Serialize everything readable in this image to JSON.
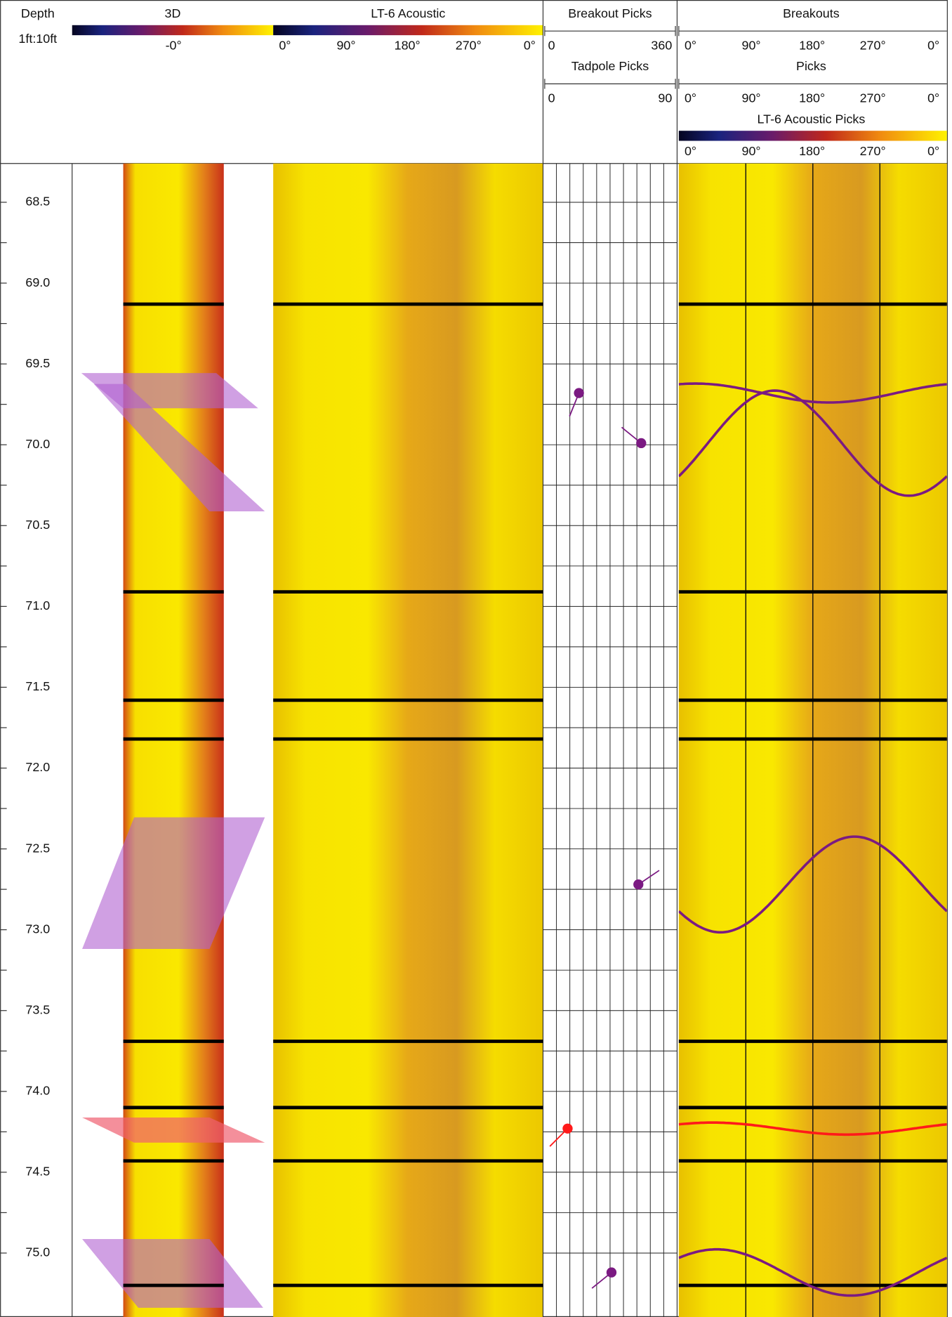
{
  "chart_data": {
    "type": "well-log",
    "depth_label": "Depth",
    "scale_label": "1ft:10ft",
    "ylim": [
      68.26,
      75.38
    ],
    "yticks": [
      68.5,
      {
        "value": 69,
        "label": "69.0"
      },
      69.5,
      {
        "value": 70,
        "label": "70.0"
      },
      70.5,
      {
        "value": 71,
        "label": "71.0"
      },
      71.5,
      {
        "value": 72,
        "label": "72.0"
      },
      72.5,
      {
        "value": 73,
        "label": "73.0"
      },
      73.5,
      {
        "value": 74,
        "label": "74.0"
      },
      74.5,
      {
        "value": 75,
        "label": "75.0"
      }
    ],
    "tracks": {
      "three_d": {
        "title": "3D",
        "tick_label": "-0°"
      },
      "acoustic": {
        "title": "LT-6 Acoustic"
      },
      "breakout_picks": {
        "title": "Breakout Picks",
        "xlim": [
          0,
          360
        ]
      },
      "tadpole_picks": {
        "title": "Tadpole Picks",
        "xlim": [
          0,
          90
        ]
      },
      "breakouts": {
        "title": "Breakouts"
      },
      "picks": {
        "title": "Picks"
      },
      "acoustic_picks": {
        "title": "LT-6 Acoustic Picks"
      }
    },
    "azimuth_lim": [
      0,
      360
    ],
    "azimuth_ticks": [
      {
        "value": 0,
        "label": "0°"
      },
      {
        "value": 90,
        "label": "90°"
      },
      {
        "value": 180,
        "label": "180°"
      },
      {
        "value": 270,
        "label": "270°"
      },
      {
        "value": 360,
        "label": "0°"
      }
    ],
    "boundaries": [
      69.13,
      70.91,
      71.58,
      71.82,
      73.69,
      74.1,
      74.43,
      75.2
    ],
    "picks": [
      {
        "depth": 69.68,
        "dip": 23,
        "azimuth": 202,
        "color": "#7b1a82"
      },
      {
        "depth": 69.99,
        "dip": 67,
        "azimuth": 309,
        "color": "#7b1a82"
      },
      {
        "depth": 72.72,
        "dip": 65,
        "azimuth": 56,
        "color": "#7b1a82"
      },
      {
        "depth": 74.23,
        "dip": 15,
        "azimuth": 225,
        "color": "#ff1a1a"
      },
      {
        "depth": 75.12,
        "dip": 46,
        "azimuth": 231,
        "color": "#7b1a82"
      }
    ]
  }
}
